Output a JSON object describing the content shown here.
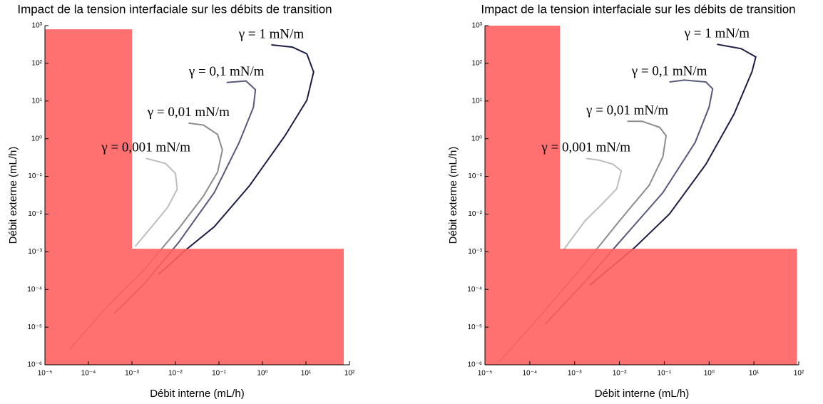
{
  "chart_data": [
    {
      "type": "line",
      "log_x": true,
      "log_y": true,
      "title": "Impact de la tension interfaciale sur les débits de transition",
      "x_label": "Débit interne (mL/h)",
      "y_label": "Débit externe (mL/h)",
      "xlim": [
        1e-05,
        100
      ],
      "ylim": [
        1e-06,
        1000
      ],
      "xticks": [
        {
          "value": 1e-05,
          "label": "10⁻⁵"
        },
        {
          "value": 0.0001,
          "label": "10⁻⁴"
        },
        {
          "value": 0.001,
          "label": "10⁻³"
        },
        {
          "value": 0.01,
          "label": "10⁻²"
        },
        {
          "value": 0.1,
          "label": "10⁻¹"
        },
        {
          "value": 1,
          "label": "10⁰"
        },
        {
          "value": 10,
          "label": "10¹"
        },
        {
          "value": 100,
          "label": "10²"
        }
      ],
      "yticks": [
        {
          "value": 1e-06,
          "label": "10⁻⁶"
        },
        {
          "value": 1e-05,
          "label": "10⁻⁵"
        },
        {
          "value": 0.0001,
          "label": "10⁻⁴"
        },
        {
          "value": 0.001,
          "label": "10⁻³"
        },
        {
          "value": 0.01,
          "label": "10⁻²"
        },
        {
          "value": 0.1,
          "label": "10⁻¹"
        },
        {
          "value": 1,
          "label": "10⁰"
        },
        {
          "value": 10,
          "label": "10¹"
        },
        {
          "value": 100,
          "label": "10²"
        },
        {
          "value": 1000,
          "label": "10³"
        }
      ],
      "shaded_region": {
        "color": "#ff6060",
        "x": [
          1e-05,
          0.001,
          0.001,
          74,
          74,
          1e-05
        ],
        "y": [
          800,
          800,
          0.0012,
          0.0012,
          1e-06,
          1e-06
        ]
      },
      "series": [
        {
          "name": "γ = 1 mN/m",
          "color": "#1c1c44",
          "x": [
            0.0041,
            0.017,
            0.078,
            0.5,
            3.3,
            10.5,
            15,
            10.5,
            4.9,
            1.6
          ],
          "values": [
            0.00025,
            0.0011,
            0.0046,
            0.056,
            1.2,
            10.5,
            59,
            178,
            270,
            310
          ]
        },
        {
          "name": "γ = 0,1 mN/m",
          "color": "#58587c",
          "x": [
            0.00039,
            0.0018,
            0.012,
            0.078,
            0.29,
            0.62,
            0.69,
            0.42,
            0.15
          ],
          "values": [
            2.3e-05,
            0.00013,
            0.0018,
            0.037,
            0.78,
            6.8,
            20,
            34,
            31
          ]
        },
        {
          "name": "γ = 0,01 mN/m",
          "color": "#8c8c8c",
          "x": [
            3.7e-05,
            0.00027,
            0.0018,
            0.012,
            0.044,
            0.093,
            0.12,
            0.093,
            0.044,
            0.02
          ],
          "values": [
            2.6e-06,
            3.5e-05,
            0.00031,
            0.0042,
            0.03,
            0.13,
            0.5,
            1.3,
            2.3,
            2.6
          ]
        },
        {
          "name": "γ = 0,001 mN/m",
          "color": "#bdbdbd",
          "x": [
            0.0012,
            0.0031,
            0.0066,
            0.011,
            0.01,
            0.0059,
            0.0021
          ],
          "values": [
            0.0014,
            0.0052,
            0.015,
            0.046,
            0.12,
            0.22,
            0.3
          ]
        }
      ]
    },
    {
      "type": "line",
      "log_x": true,
      "log_y": true,
      "title": "Impact de la tension interfaciale sur les débits de transition",
      "x_label": "Débit interne (mL/h)",
      "y_label": "Débit externe (mL/h)",
      "xlim": [
        1e-05,
        100
      ],
      "ylim": [
        1e-06,
        1000
      ],
      "xticks": [
        {
          "value": 1e-05,
          "label": "10⁻⁵"
        },
        {
          "value": 0.0001,
          "label": "10⁻⁴"
        },
        {
          "value": 0.001,
          "label": "10⁻³"
        },
        {
          "value": 0.01,
          "label": "10⁻²"
        },
        {
          "value": 0.1,
          "label": "10⁻¹"
        },
        {
          "value": 1,
          "label": "10⁰"
        },
        {
          "value": 10,
          "label": "10¹"
        },
        {
          "value": 100,
          "label": "10²"
        }
      ],
      "yticks": [
        {
          "value": 1e-06,
          "label": "10⁻⁶"
        },
        {
          "value": 1e-05,
          "label": "10⁻⁵"
        },
        {
          "value": 0.0001,
          "label": "10⁻⁴"
        },
        {
          "value": 0.001,
          "label": "10⁻³"
        },
        {
          "value": 0.01,
          "label": "10⁻²"
        },
        {
          "value": 0.1,
          "label": "10⁻¹"
        },
        {
          "value": 1,
          "label": "10⁰"
        },
        {
          "value": 10,
          "label": "10¹"
        },
        {
          "value": 100,
          "label": "10²"
        },
        {
          "value": 1000,
          "label": "10³"
        }
      ],
      "shaded_region": {
        "color": "#ff6060",
        "x": [
          1e-05,
          0.00047,
          0.00047,
          91,
          91,
          1e-05
        ],
        "y": [
          1000,
          1000,
          0.0012,
          0.0012,
          1e-06,
          1e-06
        ]
      },
      "series": [
        {
          "name": "γ = 1 mN/m",
          "color": "#1c1c44",
          "x": [
            0.0022,
            0.022,
            0.13,
            0.85,
            3.6,
            9.1,
            11,
            5.2,
            1.5
          ],
          "values": [
            0.00013,
            0.0013,
            0.01,
            0.21,
            4.5,
            61,
            148,
            245,
            320
          ]
        },
        {
          "name": "γ = 0,1 mN/m",
          "color": "#58587c",
          "x": [
            0.00022,
            0.0017,
            0.01,
            0.093,
            0.49,
            1.0,
            1.2,
            0.85,
            0.28,
            0.13
          ],
          "values": [
            1.2e-05,
            0.00016,
            0.0018,
            0.037,
            0.8,
            6.9,
            21,
            32,
            36,
            32
          ]
        },
        {
          "name": "γ = 0,01 mN/m",
          "color": "#8c8c8c",
          "x": [
            2.1e-05,
            0.00019,
            0.0017,
            0.01,
            0.046,
            0.093,
            0.11,
            0.079,
            0.032,
            0.015
          ],
          "values": [
            1.2e-06,
            2.3e-05,
            0.00048,
            0.0066,
            0.058,
            0.33,
            1.2,
            2.0,
            2.9,
            2.9
          ]
        },
        {
          "name": "γ = 0,001 mN/m",
          "color": "#bdbdbd",
          "x": [
            0.00056,
            0.0017,
            0.0042,
            0.0087,
            0.011,
            0.0072,
            0.0035,
            0.0018
          ],
          "values": [
            0.0011,
            0.0066,
            0.019,
            0.047,
            0.14,
            0.21,
            0.27,
            0.3
          ]
        }
      ]
    }
  ]
}
